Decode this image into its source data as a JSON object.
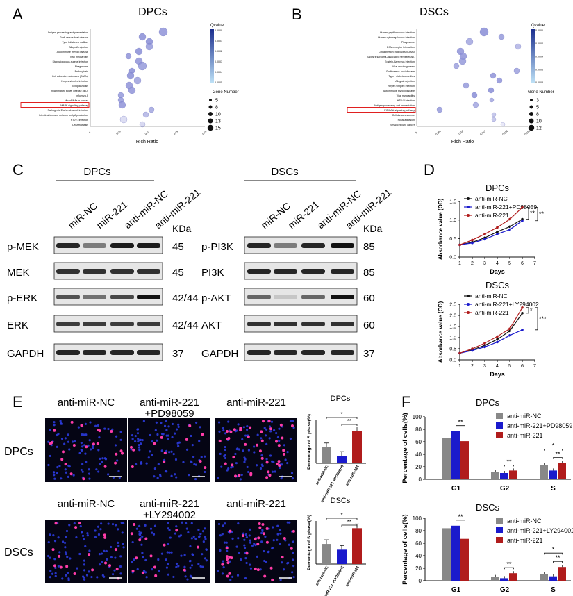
{
  "panels": {
    "A": {
      "letter": "A",
      "title": "DPCs",
      "xlabel": "Rich Ratio",
      "terms": [
        "Antigen processing and presentation",
        "Graft-versus-host disease",
        "Type I diabetes mellitus",
        "Allograft rejection",
        "Autoimmune thyroid disease",
        "Viral myocarditis",
        "Staphylococcus aureus infection",
        "Phagosome",
        "Endocytosis",
        "Cell adhesion molecules (CAMs)",
        "Herpes simplex infection",
        "Toxoplasmosis",
        "Inflammatory bowel disease (IBD)",
        "Influenza A",
        "MicroRNAs in cancer",
        "MAPK signaling pathway",
        "Pathogenic Escherichia coli infection",
        "Intestinal immune network for IgA production",
        "HTLV-I infection",
        "Leishmaniasis"
      ],
      "highlight": "MAPK signaling pathway",
      "xticks": [
        "0",
        "0.05",
        "0.10",
        "0.15",
        "0.20"
      ],
      "legend_q_title": "Qvalue",
      "legend_q_ticks": [
        "0.0000",
        "0.0001",
        "0.0002",
        "0.0003",
        "0.0004",
        "0.0005"
      ],
      "legend_g_title": "Gene Number",
      "legend_g_values": [
        "5",
        "8",
        "10",
        "13",
        "15"
      ]
    },
    "B": {
      "letter": "B",
      "title": "DSCs",
      "xlabel": "Rich Ratio",
      "terms": [
        "Human papillomavirus infection",
        "Human cytomegalovirus infection",
        "Phagosome",
        "ECM-receptor interaction",
        "Cell adhesion molecules (CAMs)",
        "Kaposi's sarcoma-associated herpesvirus i.",
        "Epstein-Barr virus infection",
        "Viral carcinogenesis",
        "Graft-versus-host disease",
        "Type I diabetes mellitus",
        "Allograft rejection",
        "Herpes simplex infection",
        "Autoimmune thyroid disease",
        "Viral myocarditis",
        "HTLV-I infection",
        "Antigen processing and presentation",
        "PI3K-Akt signaling pathway",
        "Cellular senescence",
        "Focal adhesion",
        "Small cell lung cancer"
      ],
      "highlight": "PI3K-Akt signaling pathway",
      "xticks": [
        "0",
        "0.005",
        "0.010",
        "0.015",
        "0.020",
        "0.025"
      ],
      "legend_q_title": "Qvalue",
      "legend_q_ticks": [
        "0.0000",
        "0.0002",
        "0.0004",
        "0.0006",
        "0.0008"
      ],
      "legend_g_title": "Gene Number",
      "legend_g_values": [
        "3",
        "5",
        "8",
        "10",
        "12"
      ]
    },
    "C": {
      "letter": "C",
      "kda_label": "KDa",
      "left_group": "DPCs",
      "right_group": "DSCs",
      "lanes": [
        "miR-NC",
        "miR-221",
        "anti-miR-NC",
        "anti-miR-221"
      ],
      "left_rows": [
        {
          "label": "p-MEK",
          "kda": "45"
        },
        {
          "label": "MEK",
          "kda": "45"
        },
        {
          "label": "p-ERK",
          "kda": "42/44"
        },
        {
          "label": "ERK",
          "kda": "42/44"
        },
        {
          "label": "GAPDH",
          "kda": "37"
        }
      ],
      "right_rows": [
        {
          "label": "p-PI3K",
          "kda": "85"
        },
        {
          "label": "PI3K",
          "kda": "85"
        },
        {
          "label": "p-AKT",
          "kda": "60"
        },
        {
          "label": "AKT",
          "kda": "60"
        },
        {
          "label": "GAPDH",
          "kda": "37"
        }
      ]
    },
    "D": {
      "letter": "D",
      "charts": [
        {
          "title": "DPCs",
          "legend": [
            "anti-miR-NC",
            "anti-miR-221+PD98059",
            "anti-miR-221"
          ],
          "sig": [
            "**",
            "**"
          ],
          "ylabel": "Absorbance value (OD)",
          "xlabel": "Days",
          "xticks": [
            "1",
            "2",
            "3",
            "4",
            "5",
            "6",
            "7"
          ],
          "yticks": [
            "0.0",
            "0.5",
            "1.0",
            "1.5"
          ]
        },
        {
          "title": "DSCs",
          "legend": [
            "anti-miR-NC",
            "anti-miR-221+LY294002",
            "anti-miR-221"
          ],
          "sig": [
            "*",
            "***"
          ],
          "ylabel": "Absorbance value (OD)",
          "xlabel": "Days",
          "xticks": [
            "1",
            "2",
            "3",
            "4",
            "5",
            "6",
            "7"
          ],
          "yticks": [
            "0.0",
            "0.5",
            "1.0",
            "1.5",
            "2.0",
            "2.5"
          ]
        }
      ]
    },
    "E": {
      "letter": "E",
      "col_labels_top": [
        "anti-miR-NC",
        "anti-miR-221\n+PD98059",
        "anti-miR-221"
      ],
      "col_labels_bottom": [
        "anti-miR-NC",
        "anti-miR-221\n+LY294002",
        "anti-miR-221"
      ],
      "row_labels": [
        "DPCs",
        "DSCs"
      ],
      "bar_titles": [
        "DPCs",
        "DSCs"
      ],
      "bar_ylabel": "Percentage of S phase(%)",
      "bar_cats_top": [
        "anti-miR-NC",
        "anti-miR-221\n+PD98059",
        "anti-miR-221"
      ],
      "bar_cats_bottom": [
        "anti-miR-NC",
        "anti-miR-221\n+LY294002",
        "anti-miR-221"
      ],
      "bar_sig": [
        "*",
        "**"
      ]
    },
    "F": {
      "letter": "F",
      "charts": [
        {
          "title": "DPCs",
          "legend": [
            "anti-miR-NC",
            "anti-miR-221+PD98059",
            "anti-miR-221"
          ],
          "ylabel": "Percentage of cells(%)",
          "yticks": [
            "0",
            "20",
            "40",
            "60",
            "80",
            "100"
          ],
          "cats": [
            "G1",
            "G2",
            "S"
          ]
        },
        {
          "title": "DSCs",
          "legend": [
            "anti-miR-NC",
            "anti-miR-221+LY294002",
            "anti-miR-221"
          ],
          "ylabel": "Percentage of cells(%)",
          "yticks": [
            "0",
            "20",
            "40",
            "60",
            "80",
            "100"
          ],
          "cats": [
            "G1",
            "G2",
            "S"
          ]
        }
      ]
    }
  },
  "colors": {
    "gray": "#888888",
    "blue": "#1a1acc",
    "red": "#b01c1c",
    "black": "#111111",
    "bubble": "#8f93d8",
    "highlight": "#e02020"
  },
  "chart_data": [
    {
      "type": "line",
      "title": "DPCs",
      "x": [
        1,
        2,
        3,
        4,
        5,
        6
      ],
      "xlabel": "Days",
      "ylabel": "Absorbance value (OD)",
      "ylim": [
        0,
        1.5
      ],
      "series": [
        {
          "name": "anti-miR-NC",
          "values": [
            0.33,
            0.4,
            0.52,
            0.68,
            0.82,
            1.02
          ]
        },
        {
          "name": "anti-miR-221+PD98059",
          "values": [
            0.33,
            0.38,
            0.48,
            0.62,
            0.74,
            0.98
          ]
        },
        {
          "name": "anti-miR-221",
          "values": [
            0.33,
            0.46,
            0.62,
            0.8,
            1.02,
            1.34
          ]
        }
      ]
    },
    {
      "type": "line",
      "title": "DSCs",
      "x": [
        1,
        2,
        3,
        4,
        5,
        6
      ],
      "xlabel": "Days",
      "ylabel": "Absorbance value (OD)",
      "ylim": [
        0,
        2.5
      ],
      "series": [
        {
          "name": "anti-miR-NC",
          "values": [
            0.3,
            0.45,
            0.65,
            0.92,
            1.3,
            2.1
          ]
        },
        {
          "name": "anti-miR-221+LY294002",
          "values": [
            0.3,
            0.42,
            0.58,
            0.8,
            1.1,
            1.35
          ]
        },
        {
          "name": "anti-miR-221",
          "values": [
            0.3,
            0.5,
            0.75,
            1.05,
            1.4,
            2.35
          ]
        }
      ]
    },
    {
      "type": "bar",
      "title": "DPCs",
      "categories": [
        "anti-miR-NC",
        "anti-miR-221+PD98059",
        "anti-miR-221"
      ],
      "ylabel": "Percentage of S phase(%)",
      "ylim": [
        0,
        20
      ],
      "series": [
        {
          "values": [
            7.5,
            3.5,
            15.0
          ]
        }
      ]
    },
    {
      "type": "bar",
      "title": "DSCs",
      "categories": [
        "anti-miR-NC",
        "anti-miR-221+LY294002",
        "anti-miR-221"
      ],
      "ylabel": "Percentage of S phase(%)",
      "ylim": [
        0,
        15
      ],
      "series": [
        {
          "values": [
            7.0,
            5.0,
            12.5
          ]
        }
      ]
    },
    {
      "type": "bar",
      "title": "DPCs",
      "categories": [
        "G1",
        "G2",
        "S"
      ],
      "ylabel": "Percentage of cells(%)",
      "ylim": [
        0,
        100
      ],
      "series": [
        {
          "name": "anti-miR-NC",
          "values": [
            66,
            12,
            23
          ]
        },
        {
          "name": "anti-miR-221+PD98059",
          "values": [
            77,
            10,
            14
          ]
        },
        {
          "name": "anti-miR-221",
          "values": [
            61,
            14,
            26
          ]
        }
      ]
    },
    {
      "type": "bar",
      "title": "DSCs",
      "categories": [
        "G1",
        "G2",
        "S"
      ],
      "ylabel": "Percentage of cells(%)",
      "ylim": [
        0,
        100
      ],
      "series": [
        {
          "name": "anti-miR-NC",
          "values": [
            84,
            6,
            11
          ]
        },
        {
          "name": "anti-miR-221+LY294002",
          "values": [
            88,
            4,
            7
          ]
        },
        {
          "name": "anti-miR-221",
          "values": [
            67,
            12,
            22
          ]
        }
      ]
    }
  ]
}
